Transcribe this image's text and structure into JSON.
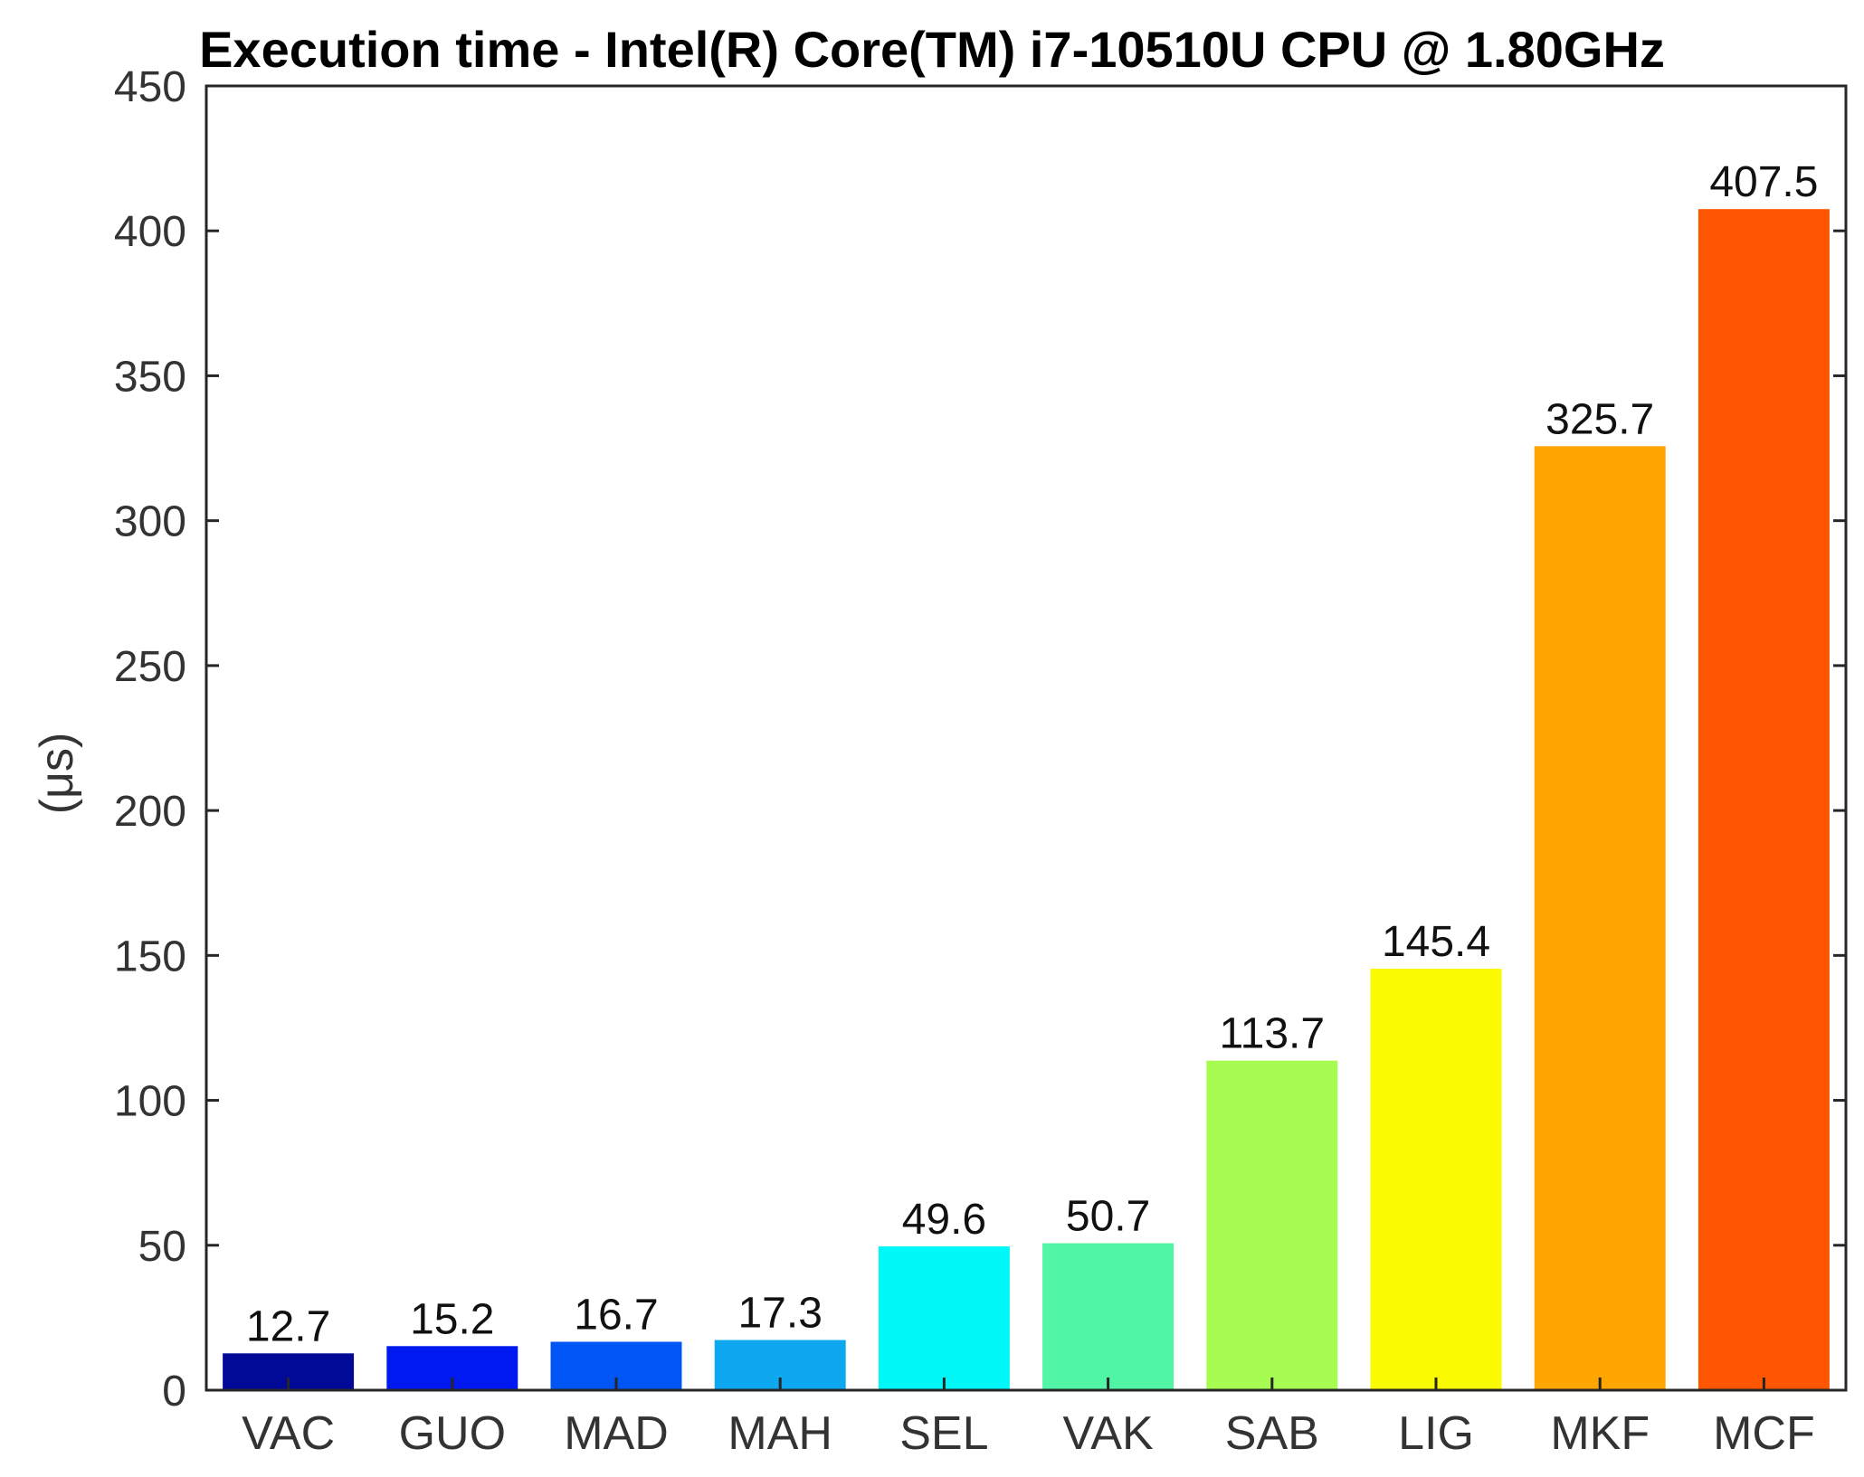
{
  "chart_data": {
    "type": "bar",
    "title": "Execution time - Intel(R) Core(TM) i7-10510U CPU @ 1.80GHz",
    "xlabel": "",
    "ylabel": "(μs)",
    "ylim": [
      0,
      450
    ],
    "yticks": [
      "0",
      "50",
      "100",
      "150",
      "200",
      "250",
      "300",
      "350",
      "400",
      "450"
    ],
    "categories": [
      "VAC",
      "GUO",
      "MAD",
      "MAH",
      "SEL",
      "VAK",
      "SAB",
      "LIG",
      "MKF",
      "MCF"
    ],
    "values": [
      12.7,
      15.2,
      16.7,
      17.3,
      49.6,
      50.7,
      113.7,
      145.4,
      325.7,
      407.5
    ],
    "value_labels": [
      "12.7",
      "15.2",
      "16.7",
      "17.3",
      "49.6",
      "50.7",
      "113.7",
      "145.4",
      "325.7",
      "407.5"
    ],
    "colors": [
      "#000a96",
      "#0019f0",
      "#0055f5",
      "#0ea8f0",
      "#00f8f8",
      "#50f5a5",
      "#a7fc52",
      "#fafa00",
      "#fea500",
      "#fe5500"
    ],
    "grid": false,
    "legend": "none"
  }
}
